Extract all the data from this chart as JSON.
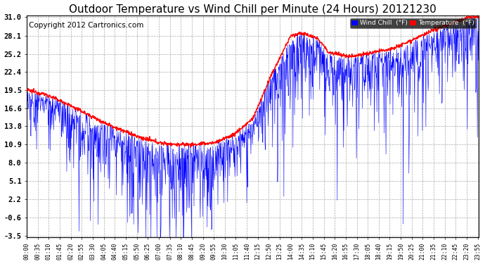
{
  "title": "Outdoor Temperature vs Wind Chill per Minute (24 Hours) 20121230",
  "copyright": "Copyright 2012 Cartronics.com",
  "y_ticks": [
    31.0,
    28.1,
    25.2,
    22.4,
    19.5,
    16.6,
    13.8,
    10.9,
    8.0,
    5.1,
    2.2,
    -0.6,
    -3.5
  ],
  "ylim": [
    -3.5,
    31.0
  ],
  "temp_color": "#FF0000",
  "wind_color": "#0000FF",
  "bg_color": "#FFFFFF",
  "grid_color": "#AAAAAA",
  "legend_wind_bg": "#0000FF",
  "legend_temp_bg": "#FF0000",
  "title_fontsize": 11,
  "copyright_fontsize": 7.5,
  "temp_curve_points": {
    "hours": [
      0,
      1,
      2,
      3,
      4,
      5,
      6,
      7,
      7.5,
      8,
      9,
      10,
      11,
      12,
      13,
      13.5,
      14,
      14.5,
      15,
      15.5,
      16,
      16.5,
      17,
      17.5,
      18,
      18.5,
      19,
      19.5,
      20,
      20.5,
      21,
      21.5,
      22,
      22.5,
      23,
      23.5,
      24
    ],
    "values": [
      19.5,
      18.8,
      17.5,
      16.0,
      14.5,
      13.2,
      12.0,
      11.2,
      11.0,
      10.9,
      10.9,
      11.2,
      12.5,
      15.0,
      22.0,
      25.0,
      28.0,
      28.5,
      28.1,
      27.5,
      25.5,
      25.2,
      24.8,
      25.0,
      25.2,
      25.5,
      25.8,
      26.2,
      26.8,
      27.5,
      28.1,
      28.8,
      29.5,
      30.0,
      30.5,
      31.0,
      31.0
    ]
  }
}
